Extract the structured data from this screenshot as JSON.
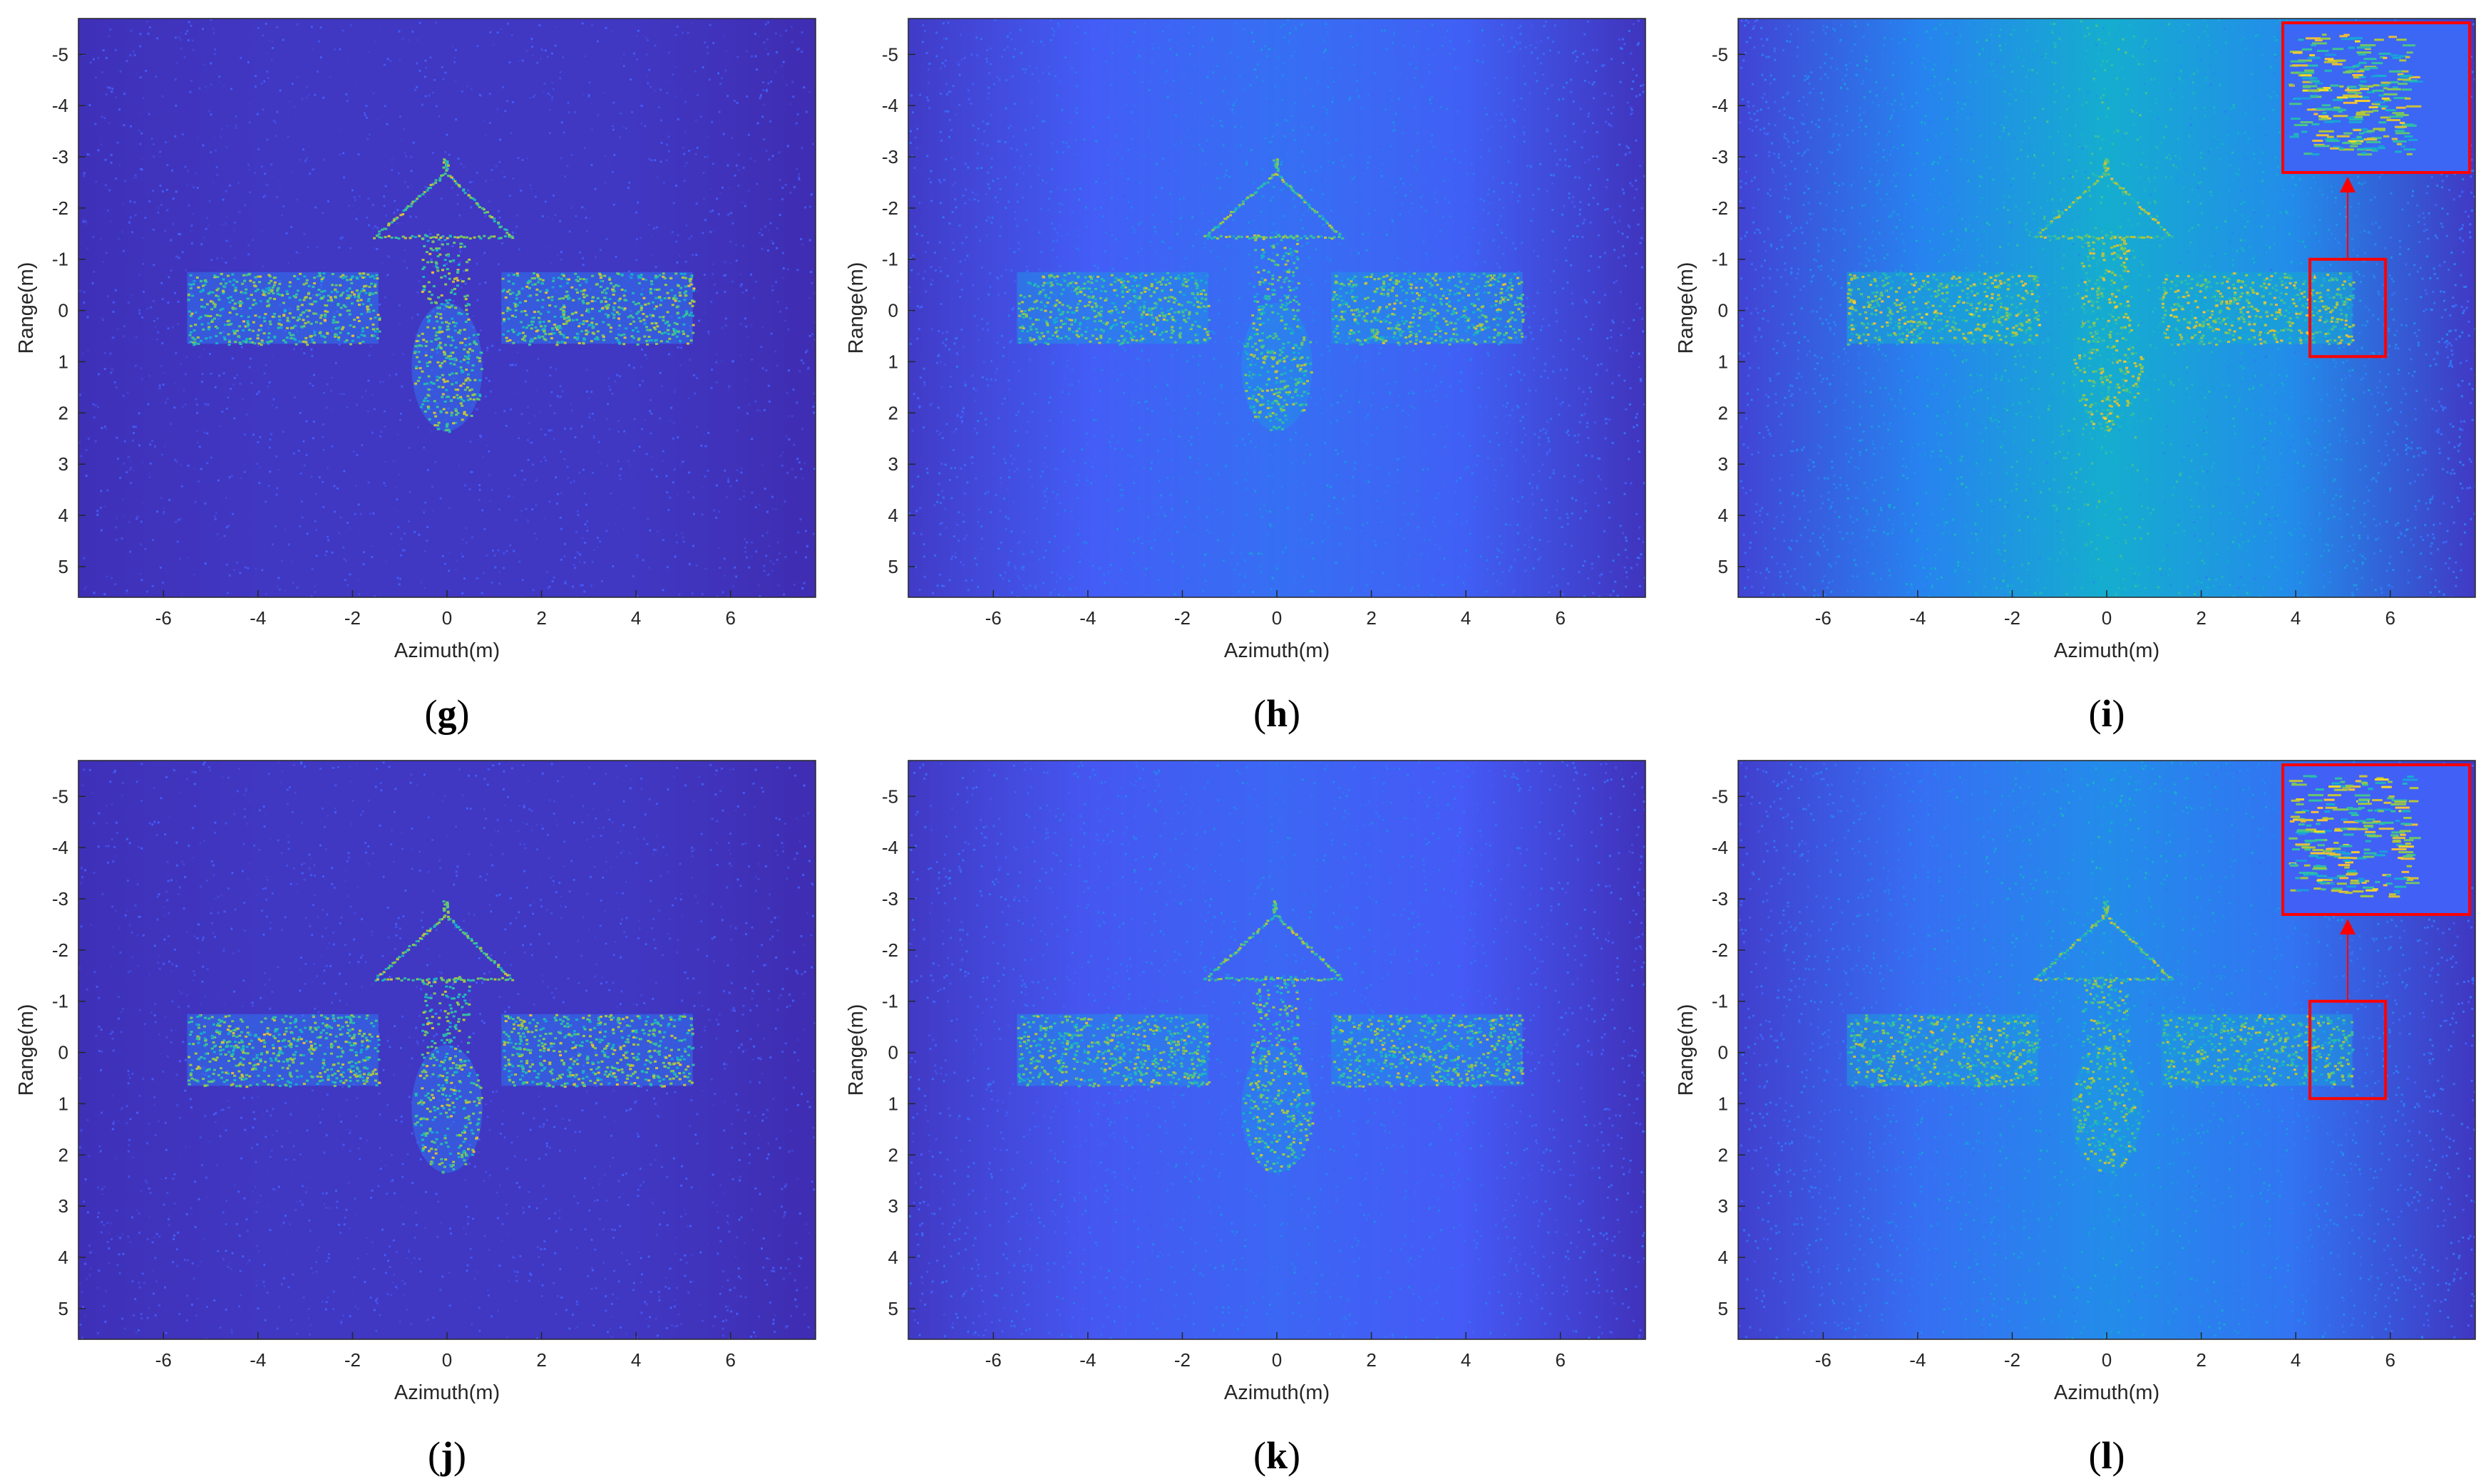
{
  "chart_data": [
    {
      "id": "g",
      "type": "heatmap",
      "caption": "(g)",
      "xlabel": "Azimuth(m)",
      "ylabel": "Range(m)",
      "xlim": [
        -7.8,
        7.8
      ],
      "ylim": [
        -5.7,
        5.6
      ],
      "y_reversed": true,
      "xticks": [
        -6,
        -4,
        -2,
        0,
        2,
        4,
        6
      ],
      "yticks": [
        -5,
        -4,
        -3,
        -2,
        -1,
        0,
        1,
        2,
        3,
        4,
        5
      ],
      "colormap": "parula",
      "background_level": 0.05,
      "center_brightening": 0.0,
      "target_level": 0.75,
      "zoom_inset": false
    },
    {
      "id": "h",
      "type": "heatmap",
      "caption": "(h)",
      "xlabel": "Azimuth(m)",
      "ylabel": "Range(m)",
      "xlim": [
        -7.8,
        7.8
      ],
      "ylim": [
        -5.7,
        5.6
      ],
      "y_reversed": true,
      "xticks": [
        -6,
        -4,
        -2,
        0,
        2,
        4,
        6
      ],
      "yticks": [
        -5,
        -4,
        -3,
        -2,
        -1,
        0,
        1,
        2,
        3,
        4,
        5
      ],
      "colormap": "parula",
      "background_level": 0.1,
      "center_brightening": 0.12,
      "target_level": 0.72,
      "zoom_inset": false
    },
    {
      "id": "i",
      "type": "heatmap",
      "caption": "(i)",
      "xlabel": "Azimuth(m)",
      "ylabel": "Range(m)",
      "xlim": [
        -7.8,
        7.8
      ],
      "ylim": [
        -5.7,
        5.6
      ],
      "y_reversed": true,
      "xticks": [
        -6,
        -4,
        -2,
        0,
        2,
        4,
        6
      ],
      "yticks": [
        -5,
        -4,
        -3,
        -2,
        -1,
        0,
        1,
        2,
        3,
        4,
        5
      ],
      "colormap": "parula",
      "background_level": 0.14,
      "center_brightening": 0.3,
      "target_level": 0.8,
      "zoom_inset": true,
      "zoom_box": {
        "x": [
          4.3,
          5.9
        ],
        "y": [
          -1.0,
          0.9
        ]
      }
    },
    {
      "id": "j",
      "type": "heatmap",
      "caption": "(j)",
      "xlabel": "Azimuth(m)",
      "ylabel": "Range(m)",
      "xlim": [
        -7.8,
        7.8
      ],
      "ylim": [
        -5.7,
        5.6
      ],
      "y_reversed": true,
      "xticks": [
        -6,
        -4,
        -2,
        0,
        2,
        4,
        6
      ],
      "yticks": [
        -5,
        -4,
        -3,
        -2,
        -1,
        0,
        1,
        2,
        3,
        4,
        5
      ],
      "colormap": "parula",
      "background_level": 0.05,
      "center_brightening": 0.0,
      "target_level": 0.75,
      "zoom_inset": false
    },
    {
      "id": "k",
      "type": "heatmap",
      "caption": "(k)",
      "xlabel": "Azimuth(m)",
      "ylabel": "Range(m)",
      "xlim": [
        -7.8,
        7.8
      ],
      "ylim": [
        -5.7,
        5.6
      ],
      "y_reversed": true,
      "xticks": [
        -6,
        -4,
        -2,
        0,
        2,
        4,
        6
      ],
      "yticks": [
        -5,
        -4,
        -3,
        -2,
        -1,
        0,
        1,
        2,
        3,
        4,
        5
      ],
      "colormap": "parula",
      "background_level": 0.09,
      "center_brightening": 0.1,
      "target_level": 0.72,
      "zoom_inset": false
    },
    {
      "id": "l",
      "type": "heatmap",
      "caption": "(l)",
      "xlabel": "Azimuth(m)",
      "ylabel": "Range(m)",
      "xlim": [
        -7.8,
        7.8
      ],
      "ylim": [
        -5.7,
        5.6
      ],
      "y_reversed": true,
      "xticks": [
        -6,
        -4,
        -2,
        0,
        2,
        4,
        6
      ],
      "yticks": [
        -5,
        -4,
        -3,
        -2,
        -1,
        0,
        1,
        2,
        3,
        4,
        5
      ],
      "colormap": "parula",
      "background_level": 0.12,
      "center_brightening": 0.2,
      "target_level": 0.72,
      "zoom_inset": true,
      "zoom_box": {
        "x": [
          4.3,
          5.9
        ],
        "y": [
          -1.0,
          0.9
        ]
      }
    }
  ],
  "colors": {
    "parula_low": "#3d2fa8",
    "parula_mid": "#1f9ad9",
    "parula_high": "#f9f60c",
    "zoom_box": "#ff0000"
  }
}
